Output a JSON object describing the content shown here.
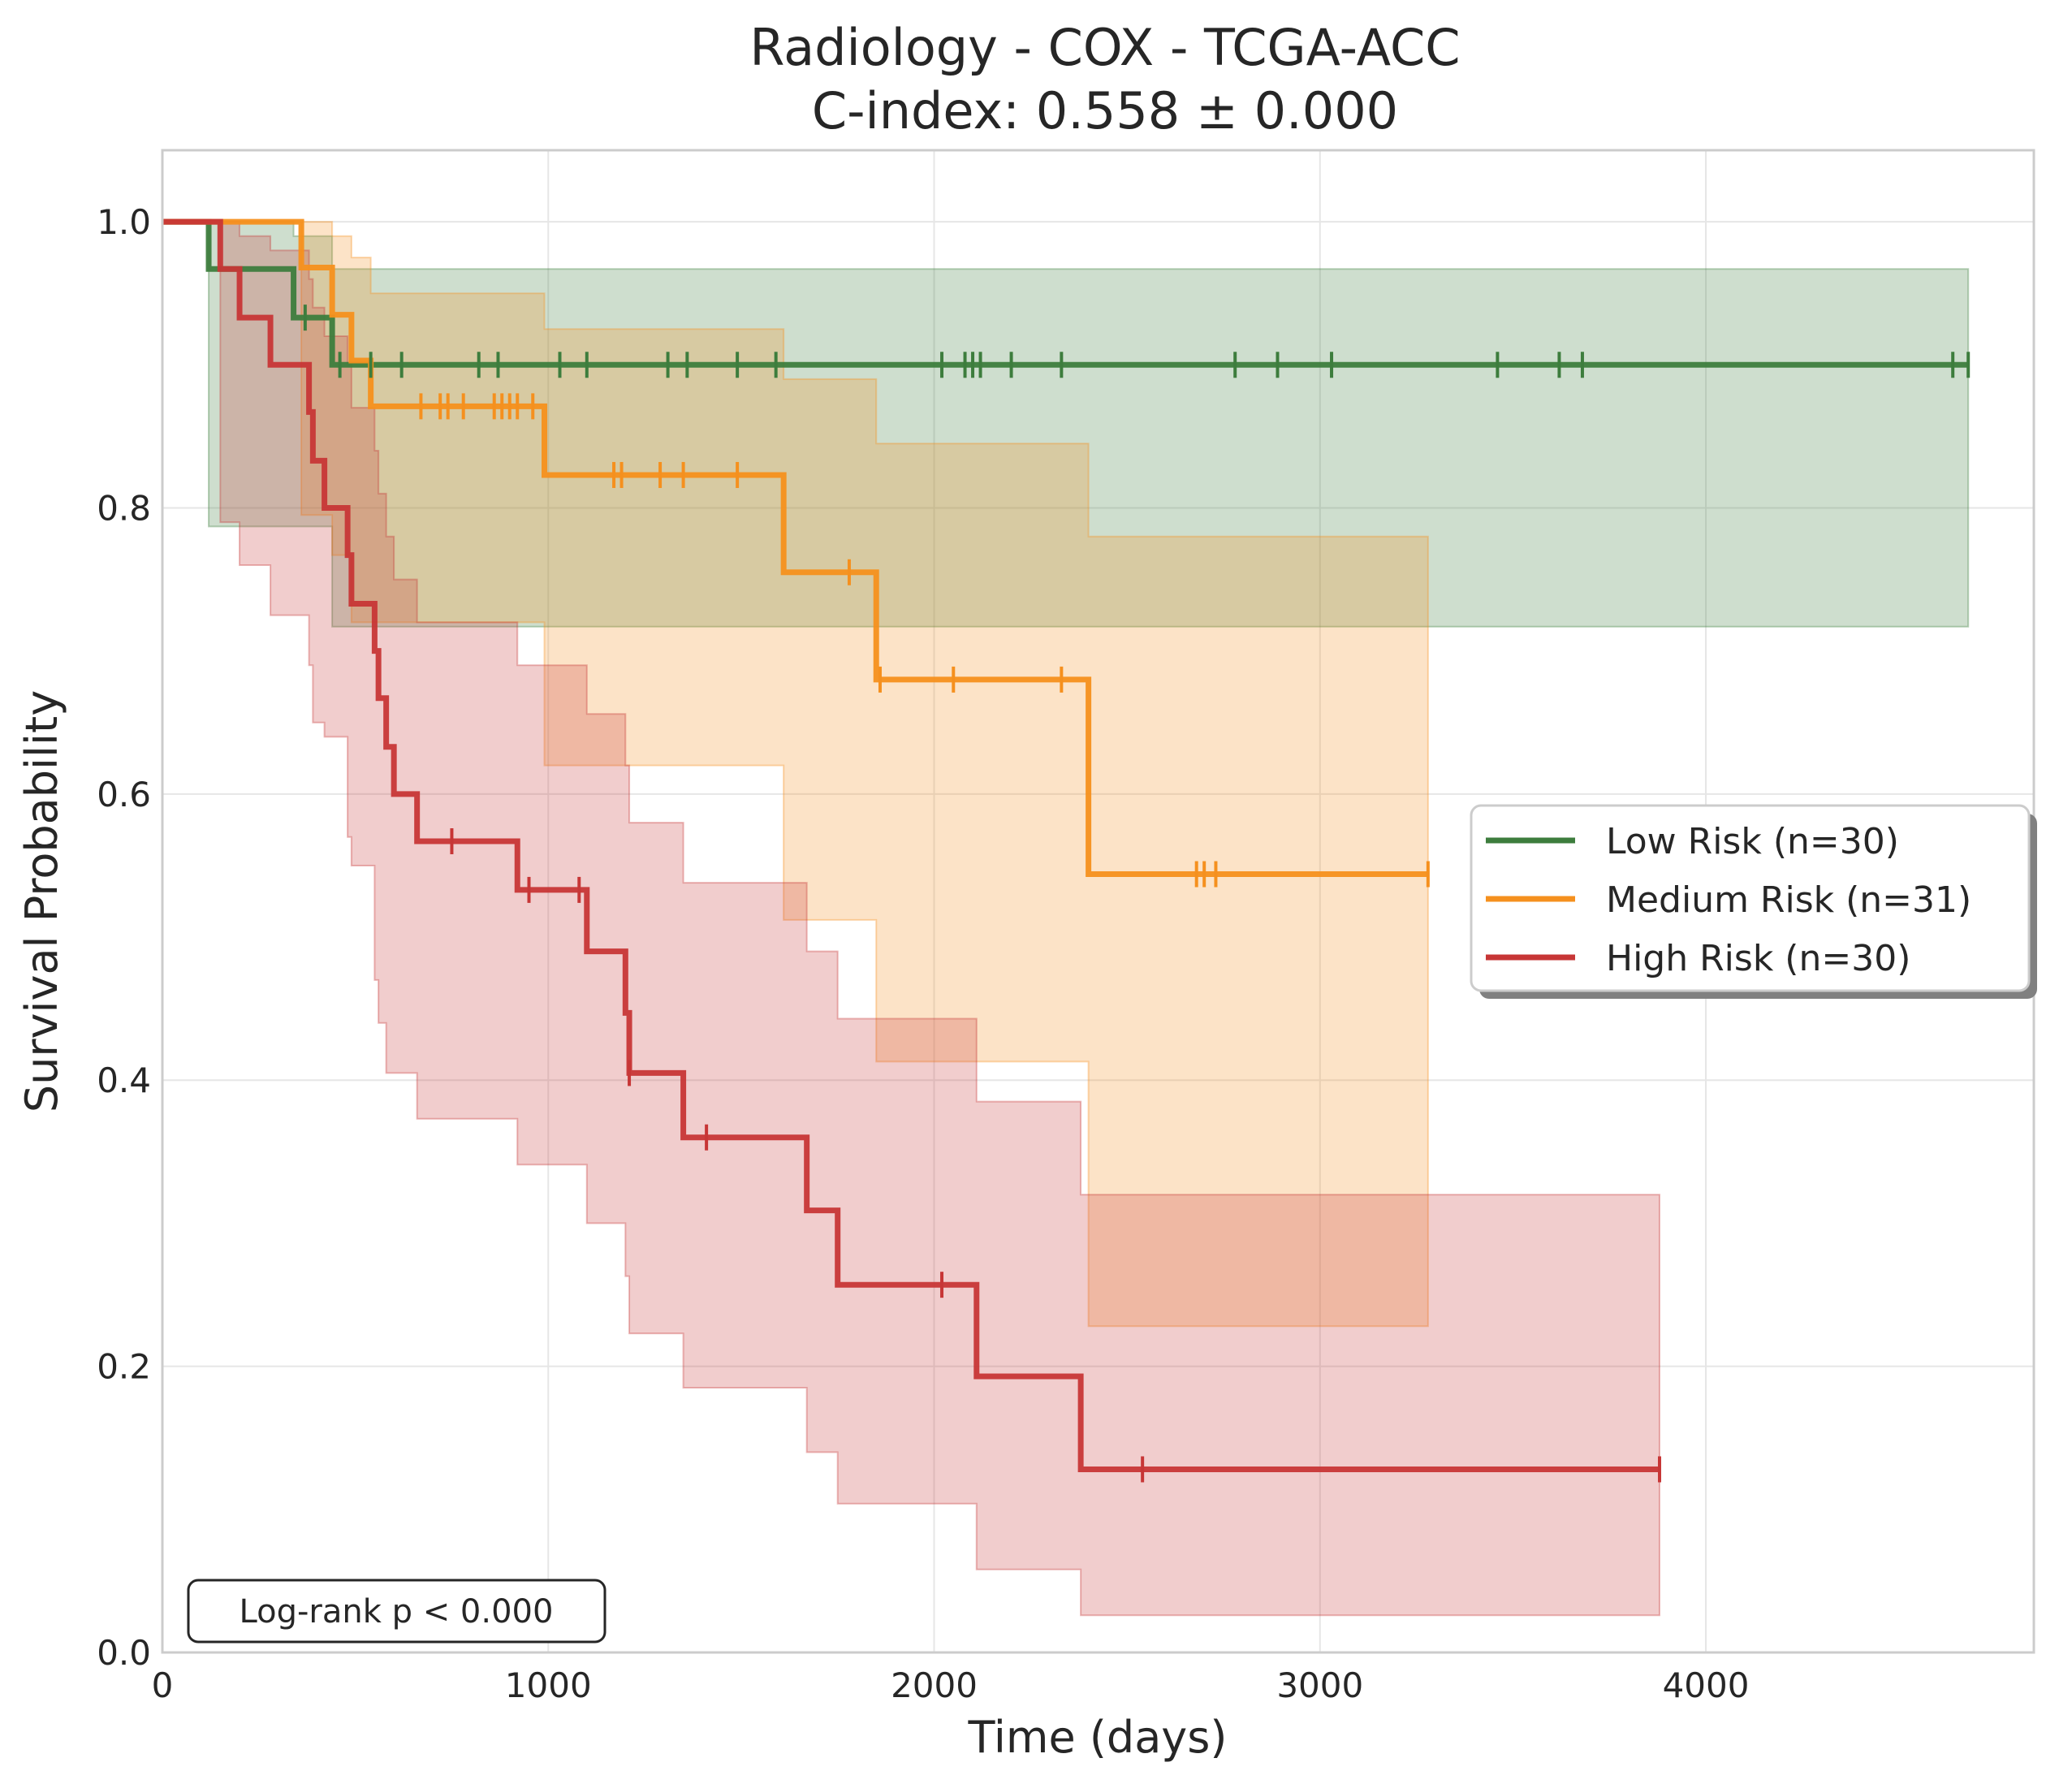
{
  "chart_data": {
    "type": "line",
    "subtype": "kaplan-meier",
    "title": "Radiology - COX - TCGA-ACC",
    "subtitle": "C-index: 0.558 ± 0.000",
    "xlabel": "Time (days)",
    "ylabel": "Survival Probability",
    "xlim": [
      0,
      4850
    ],
    "ylim": [
      0,
      1.05
    ],
    "xticks": [
      0,
      1000,
      2000,
      3000,
      4000
    ],
    "yticks": [
      0.0,
      0.2,
      0.4,
      0.6,
      0.8,
      1.0
    ],
    "xtick_labels": [
      "0",
      "1000",
      "2000",
      "3000",
      "4000"
    ],
    "ytick_labels": [
      "0.0",
      "0.2",
      "0.4",
      "0.6",
      "0.8",
      "1.0"
    ],
    "grid": true,
    "legend_position": "center-right",
    "annotation": "Log-rank p < 0.000",
    "series": [
      {
        "name": "Low Risk (n=30)",
        "color": "#3d7d3d",
        "steps": [
          [
            0,
            1.0
          ],
          [
            120,
            0.967
          ],
          [
            340,
            0.933
          ],
          [
            440,
            0.9
          ],
          [
            4680,
            0.9
          ]
        ],
        "ci_upper": [
          [
            0,
            1.0
          ],
          [
            120,
            1.0
          ],
          [
            340,
            0.99
          ],
          [
            440,
            0.967
          ],
          [
            4680,
            0.967
          ]
        ],
        "ci_lower": [
          [
            0,
            1.0
          ],
          [
            120,
            0.787
          ],
          [
            340,
            0.787
          ],
          [
            440,
            0.717
          ],
          [
            4680,
            0.717
          ]
        ],
        "censors": [
          370,
          460,
          540,
          620,
          820,
          870,
          1030,
          1100,
          1310,
          1360,
          1490,
          1590,
          2020,
          2080,
          2100,
          2120,
          2200,
          2330,
          2780,
          2890,
          3030,
          3460,
          3620,
          3680,
          4640,
          4680
        ]
      },
      {
        "name": "Medium Risk (n=31)",
        "color": "#f5901e",
        "steps": [
          [
            0,
            1.0
          ],
          [
            360,
            0.968
          ],
          [
            440,
            0.935
          ],
          [
            490,
            0.903
          ],
          [
            540,
            0.871
          ],
          [
            990,
            0.823
          ],
          [
            1610,
            0.755
          ],
          [
            1850,
            0.68
          ],
          [
            2400,
            0.544
          ],
          [
            3280,
            0.544
          ]
        ],
        "ci_upper": [
          [
            0,
            1.0
          ],
          [
            360,
            1.0
          ],
          [
            440,
            0.99
          ],
          [
            490,
            0.975
          ],
          [
            540,
            0.95
          ],
          [
            990,
            0.925
          ],
          [
            1610,
            0.89
          ],
          [
            1850,
            0.845
          ],
          [
            2400,
            0.78
          ],
          [
            3280,
            0.78
          ]
        ],
        "ci_lower": [
          [
            0,
            1.0
          ],
          [
            360,
            0.795
          ],
          [
            440,
            0.767
          ],
          [
            490,
            0.72
          ],
          [
            540,
            0.72
          ],
          [
            990,
            0.62
          ],
          [
            1610,
            0.512
          ],
          [
            1850,
            0.413
          ],
          [
            2400,
            0.228
          ],
          [
            3280,
            0.228
          ]
        ],
        "censors": [
          670,
          720,
          740,
          780,
          860,
          880,
          900,
          920,
          960,
          1170,
          1190,
          1290,
          1350,
          1490,
          1780,
          1860,
          2050,
          2330,
          2680,
          2700,
          2730,
          3280
        ]
      },
      {
        "name": "High Risk (n=30)",
        "color": "#c73636",
        "steps": [
          [
            0,
            1.0
          ],
          [
            150,
            0.967
          ],
          [
            200,
            0.933
          ],
          [
            280,
            0.9
          ],
          [
            380,
            0.867
          ],
          [
            390,
            0.833
          ],
          [
            420,
            0.8
          ],
          [
            480,
            0.767
          ],
          [
            490,
            0.733
          ],
          [
            550,
            0.7
          ],
          [
            560,
            0.667
          ],
          [
            580,
            0.633
          ],
          [
            600,
            0.6
          ],
          [
            660,
            0.567
          ],
          [
            920,
            0.533
          ],
          [
            1100,
            0.49
          ],
          [
            1200,
            0.447
          ],
          [
            1210,
            0.405
          ],
          [
            1350,
            0.36
          ],
          [
            1670,
            0.309
          ],
          [
            1750,
            0.257
          ],
          [
            2110,
            0.193
          ],
          [
            2380,
            0.128
          ],
          [
            3880,
            0.128
          ]
        ],
        "ci_upper": [
          [
            0,
            1.0
          ],
          [
            150,
            1.0
          ],
          [
            200,
            0.99
          ],
          [
            280,
            0.98
          ],
          [
            380,
            0.96
          ],
          [
            390,
            0.94
          ],
          [
            420,
            0.92
          ],
          [
            480,
            0.9
          ],
          [
            490,
            0.87
          ],
          [
            550,
            0.84
          ],
          [
            560,
            0.81
          ],
          [
            580,
            0.78
          ],
          [
            600,
            0.75
          ],
          [
            660,
            0.72
          ],
          [
            920,
            0.69
          ],
          [
            1100,
            0.656
          ],
          [
            1200,
            0.62
          ],
          [
            1210,
            0.58
          ],
          [
            1350,
            0.538
          ],
          [
            1670,
            0.49
          ],
          [
            1750,
            0.443
          ],
          [
            2110,
            0.385
          ],
          [
            2380,
            0.32
          ],
          [
            3880,
            0.32
          ]
        ],
        "ci_lower": [
          [
            0,
            1.0
          ],
          [
            150,
            0.79
          ],
          [
            200,
            0.76
          ],
          [
            280,
            0.725
          ],
          [
            380,
            0.69
          ],
          [
            390,
            0.65
          ],
          [
            420,
            0.64
          ],
          [
            480,
            0.57
          ],
          [
            490,
            0.55
          ],
          [
            550,
            0.47
          ],
          [
            560,
            0.44
          ],
          [
            580,
            0.405
          ],
          [
            600,
            0.405
          ],
          [
            660,
            0.373
          ],
          [
            920,
            0.341
          ],
          [
            1100,
            0.3
          ],
          [
            1200,
            0.263
          ],
          [
            1210,
            0.223
          ],
          [
            1350,
            0.185
          ],
          [
            1670,
            0.14
          ],
          [
            1750,
            0.104
          ],
          [
            2110,
            0.058
          ],
          [
            2380,
            0.026
          ],
          [
            3880,
            0.026
          ]
        ],
        "censors": [
          750,
          950,
          1080,
          1210,
          1410,
          2020,
          2540,
          3880
        ]
      }
    ]
  }
}
